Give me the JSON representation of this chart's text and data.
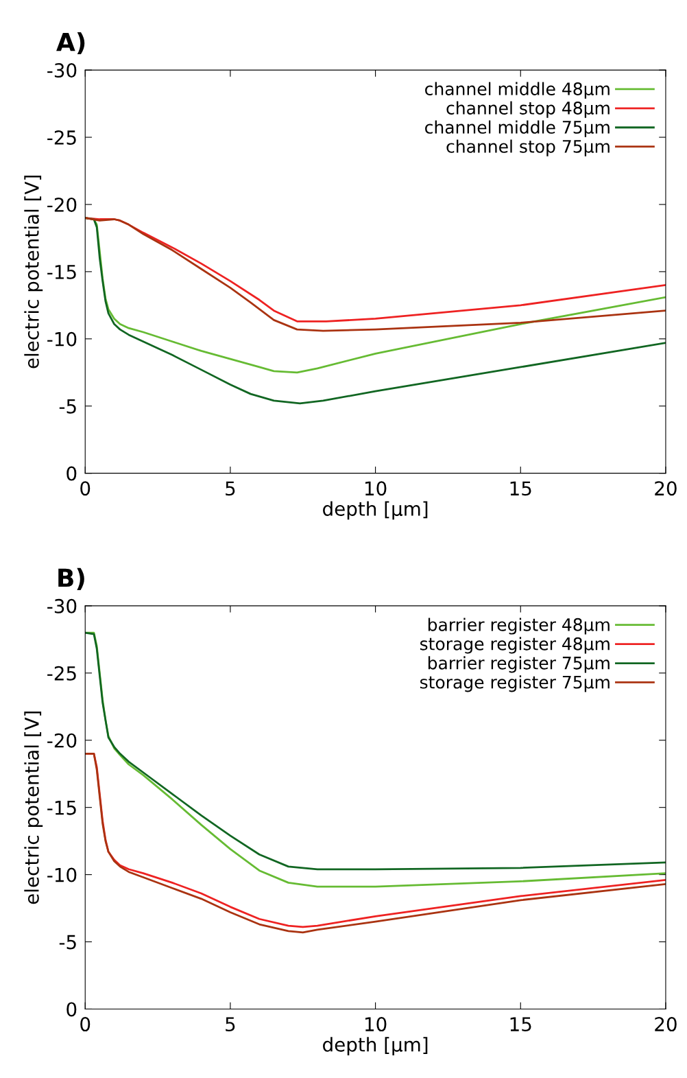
{
  "chart_data": [
    {
      "type": "line",
      "title": "A)",
      "xlabel": "depth [µm]",
      "ylabel": "electric potential [V]",
      "xlim": [
        0,
        20
      ],
      "xticks": [
        0,
        5,
        10,
        15,
        20
      ],
      "ylim": [
        0,
        -30
      ],
      "yticks": [
        0,
        -5,
        -10,
        -15,
        -20,
        -25,
        -30
      ],
      "legend": "top right",
      "grid": false,
      "series": [
        {
          "name": "channel middle 48µm",
          "color": "#66bb33",
          "x": [
            0,
            0.3,
            0.4,
            0.5,
            0.6,
            0.7,
            0.8,
            1,
            1.2,
            1.5,
            2,
            3,
            4,
            5,
            6,
            6.5,
            7.3,
            8,
            10,
            15,
            20
          ],
          "values": [
            -19,
            -18.9,
            -18.5,
            -16.5,
            -14.5,
            -13,
            -12.2,
            -11.5,
            -11.1,
            -10.8,
            -10.5,
            -9.8,
            -9.1,
            -8.5,
            -7.9,
            -7.6,
            -7.5,
            -7.8,
            -8.9,
            -11.1,
            -13.1
          ]
        },
        {
          "name": "channel stop 48µm",
          "color": "#ee2222",
          "x": [
            0,
            0.5,
            1,
            1.2,
            1.5,
            2,
            3,
            4,
            5,
            6,
            6.5,
            7.3,
            8.3,
            10,
            15,
            20
          ],
          "values": [
            -19,
            -18.9,
            -18.9,
            -18.8,
            -18.5,
            -17.9,
            -16.8,
            -15.6,
            -14.3,
            -12.9,
            -12.1,
            -11.3,
            -11.3,
            -11.5,
            -12.5,
            -14
          ]
        },
        {
          "name": "channel middle 75µm",
          "color": "#116622",
          "x": [
            0,
            0.3,
            0.4,
            0.5,
            0.6,
            0.7,
            0.8,
            1,
            1.2,
            1.5,
            2,
            3,
            4,
            5,
            5.7,
            6.5,
            7.4,
            8.2,
            10,
            15,
            20
          ],
          "values": [
            -19,
            -18.9,
            -18.3,
            -16,
            -14.3,
            -12.8,
            -11.9,
            -11.1,
            -10.7,
            -10.3,
            -9.8,
            -8.8,
            -7.7,
            -6.6,
            -5.9,
            -5.4,
            -5.2,
            -5.4,
            -6.1,
            -7.9,
            -9.7
          ]
        },
        {
          "name": "channel stop 75µm",
          "color": "#aa3311",
          "x": [
            0,
            0.5,
            1,
            1.2,
            1.5,
            2,
            3,
            4,
            5,
            5.7,
            6.5,
            7.3,
            8.2,
            10,
            15,
            20
          ],
          "values": [
            -19,
            -18.8,
            -18.9,
            -18.8,
            -18.5,
            -17.8,
            -16.6,
            -15.2,
            -13.8,
            -12.7,
            -11.4,
            -10.7,
            -10.6,
            -10.7,
            -11.2,
            -12.1
          ]
        }
      ]
    },
    {
      "type": "line",
      "title": "B)",
      "xlabel": "depth [µm]",
      "ylabel": "electric potential [V]",
      "xlim": [
        0,
        20
      ],
      "xticks": [
        0,
        5,
        10,
        15,
        20
      ],
      "ylim": [
        0,
        -30
      ],
      "yticks": [
        0,
        -5,
        -10,
        -15,
        -20,
        -25,
        -30
      ],
      "legend": "top right",
      "grid": false,
      "series": [
        {
          "name": "barrier register 48µm",
          "color": "#66bb33",
          "x": [
            0,
            0.3,
            0.4,
            0.5,
            0.6,
            0.7,
            0.8,
            1,
            1.2,
            1.5,
            2,
            3,
            4,
            5,
            6,
            7,
            8,
            10,
            15,
            20
          ],
          "values": [
            -28,
            -28,
            -27,
            -25,
            -23,
            -21.5,
            -20.3,
            -19.4,
            -18.9,
            -18.2,
            -17.4,
            -15.6,
            -13.7,
            -11.9,
            -10.3,
            -9.4,
            -9.1,
            -9.1,
            -9.5,
            -10.1
          ]
        },
        {
          "name": "storage register 48µm",
          "color": "#ee2222",
          "x": [
            0,
            0.3,
            0.4,
            0.5,
            0.6,
            0.7,
            0.8,
            1,
            1.2,
            1.5,
            2,
            3,
            4,
            5,
            6,
            7,
            7.5,
            8,
            10,
            15,
            20
          ],
          "values": [
            -19,
            -19,
            -18,
            -16,
            -14,
            -12.6,
            -11.7,
            -11.1,
            -10.7,
            -10.4,
            -10.1,
            -9.4,
            -8.6,
            -7.6,
            -6.7,
            -6.2,
            -6.1,
            -6.2,
            -6.9,
            -8.4,
            -9.6
          ]
        },
        {
          "name": "barrier register 75µm",
          "color": "#116622",
          "x": [
            0,
            0.3,
            0.4,
            0.5,
            0.6,
            0.7,
            0.8,
            1,
            1.2,
            1.5,
            2,
            3,
            4,
            5,
            6,
            7,
            8,
            10,
            15,
            20
          ],
          "values": [
            -28,
            -27.9,
            -26.8,
            -24.8,
            -22.8,
            -21.5,
            -20.2,
            -19.5,
            -19,
            -18.4,
            -17.6,
            -16,
            -14.4,
            -12.9,
            -11.5,
            -10.6,
            -10.4,
            -10.4,
            -10.5,
            -10.9
          ]
        },
        {
          "name": "storage register 75µm",
          "color": "#aa3311",
          "x": [
            0,
            0.3,
            0.4,
            0.5,
            0.6,
            0.7,
            0.8,
            1,
            1.2,
            1.5,
            2,
            3,
            4,
            5,
            6,
            7,
            7.5,
            8,
            10,
            15,
            20
          ],
          "values": [
            -19,
            -19,
            -17.8,
            -15.8,
            -13.8,
            -12.5,
            -11.7,
            -11,
            -10.6,
            -10.2,
            -9.8,
            -9,
            -8.2,
            -7.2,
            -6.3,
            -5.8,
            -5.7,
            -5.9,
            -6.5,
            -8.1,
            -9.3
          ]
        }
      ]
    }
  ]
}
